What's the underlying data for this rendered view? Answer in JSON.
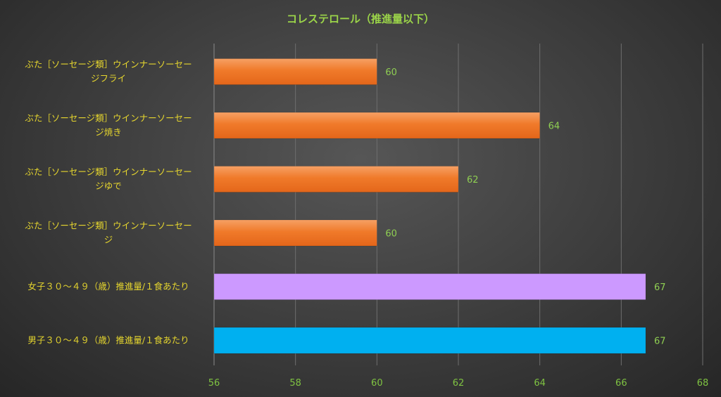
{
  "chart_data": {
    "type": "bar",
    "orientation": "horizontal",
    "title": "コレステロール（推進量以下）",
    "categories": [
      [
        "ぶた［ソーセージ類］ウインナーソーセー",
        "ジフライ"
      ],
      [
        "ぶた［ソーセージ類］ウインナーソーセー",
        "ジ焼き"
      ],
      [
        "ぶた［ソーセージ類］ウインナーソーセー",
        "ジゆで"
      ],
      [
        "ぶた［ソーセージ類］ウインナーソーセー",
        "ジ"
      ],
      [
        "女子３０～４９（歳）推進量/１食あたり"
      ],
      [
        "男子３０～４９（歳）推進量/１食あたり"
      ]
    ],
    "values": [
      60,
      64,
      62,
      60,
      66.6,
      66.6
    ],
    "value_labels": [
      "60",
      "64",
      "62",
      "60",
      "67",
      "67"
    ],
    "bar_colors": [
      "#f07a2a",
      "#f07a2a",
      "#f07a2a",
      "#f07a2a",
      "#cc99ff",
      "#00b0f0"
    ],
    "xlim": [
      56,
      68
    ],
    "xticks": [
      56,
      58,
      60,
      62,
      64,
      66,
      68
    ],
    "grid": true,
    "legend": "none"
  }
}
